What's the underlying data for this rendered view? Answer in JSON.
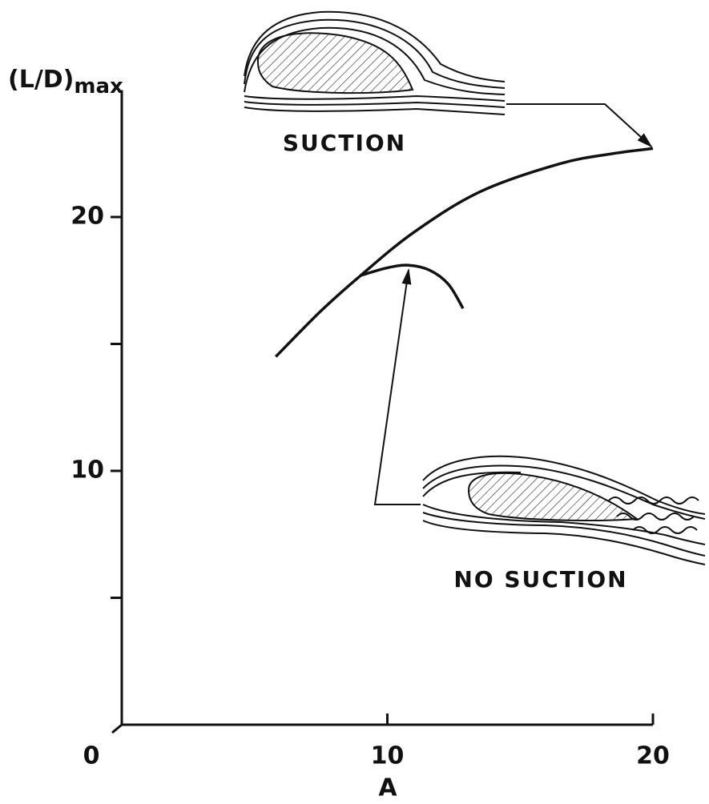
{
  "chart_data": {
    "type": "line",
    "y_label": "(L/D)",
    "y_label_subscript": "max",
    "x_label": "A",
    "xlim": [
      0,
      20
    ],
    "xticks": [
      0,
      10,
      20
    ],
    "ylim": [
      0,
      25
    ],
    "yticks": [
      10,
      20
    ],
    "yminor_ticks": [
      5,
      15
    ],
    "series": [
      {
        "name": "SUCTION",
        "color": "#111111",
        "x": [
          5.8,
          7.5,
          9.0,
          11.0,
          13.5,
          16.5,
          18.5,
          20.0
        ],
        "values": [
          14.5,
          16.3,
          17.7,
          19.4,
          21.0,
          22.1,
          22.5,
          22.7
        ]
      },
      {
        "name": "NO SUCTION",
        "color": "#111111",
        "x": [
          9.0,
          10.0,
          10.8,
          11.6,
          12.3,
          12.85
        ],
        "values": [
          17.7,
          18.0,
          18.1,
          17.9,
          17.35,
          16.4
        ]
      }
    ]
  }
}
